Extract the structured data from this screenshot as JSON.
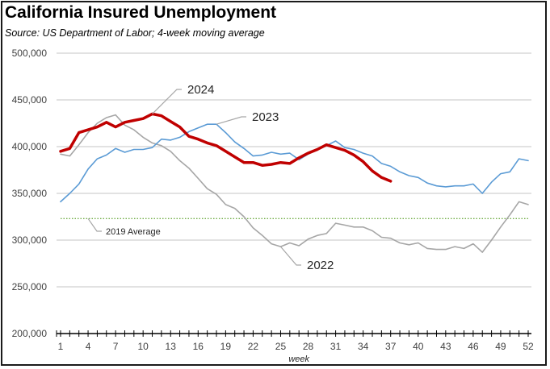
{
  "chart_data": {
    "type": "line",
    "title": "California Insured Unemployment",
    "subtitle": "Source:  US Department of Labor; 4-week moving average",
    "xlabel": "week",
    "ylabel": "",
    "xlim": [
      1,
      52
    ],
    "ylim": [
      200000,
      500000
    ],
    "x_ticks": [
      1,
      4,
      7,
      10,
      13,
      16,
      19,
      22,
      25,
      28,
      31,
      34,
      37,
      40,
      43,
      46,
      49,
      52
    ],
    "y_ticks": [
      200000,
      250000,
      300000,
      350000,
      400000,
      450000,
      500000
    ],
    "y_tick_labels": [
      "200,000",
      "250,000",
      "300,000",
      "350,000",
      "400,000",
      "450,000",
      "500,000"
    ],
    "grid": "horizontal",
    "legend": "inline annotations",
    "series": [
      {
        "name": "2022",
        "color": "#a6a6a6",
        "style": "solid",
        "x_start": 1,
        "values": [
          392000,
          390000,
          402000,
          415000,
          425000,
          431000,
          434000,
          423000,
          418000,
          410000,
          404000,
          401000,
          395000,
          385000,
          377000,
          366000,
          355000,
          349000,
          338000,
          334000,
          325000,
          313000,
          305000,
          296000,
          293000,
          297000,
          294000,
          301000,
          305000,
          307000,
          318000,
          316000,
          314000,
          314000,
          310000,
          303000,
          302000,
          297000,
          295000,
          297000,
          291000,
          290000,
          290000,
          293000,
          291000,
          296000,
          287000,
          300000,
          314000,
          327000,
          341000,
          338000
        ]
      },
      {
        "name": "2023",
        "color": "#5b9bd5",
        "style": "solid",
        "x_start": 1,
        "values": [
          341000,
          350000,
          360000,
          376000,
          387000,
          391000,
          398000,
          394000,
          397000,
          397000,
          399000,
          408000,
          407000,
          410000,
          416000,
          420000,
          424000,
          424000,
          415000,
          405000,
          398000,
          390000,
          391000,
          394000,
          392000,
          393000,
          386000,
          392000,
          397000,
          401000,
          406000,
          399000,
          397000,
          393000,
          390000,
          382000,
          379000,
          373000,
          369000,
          367000,
          361000,
          358000,
          357000,
          358000,
          358000,
          360000,
          350000,
          362000,
          371000,
          373000,
          387000,
          385000
        ]
      },
      {
        "name": "2024",
        "color": "#c00000",
        "style": "thick",
        "x_start": 1,
        "values": [
          395000,
          398000,
          415000,
          418000,
          421000,
          426000,
          421000,
          426000,
          428000,
          430000,
          435000,
          433000,
          427000,
          421000,
          411000,
          408000,
          404000,
          401000,
          395000,
          389000,
          383000,
          383000,
          380000,
          381000,
          383000,
          382000,
          388000,
          393000,
          397000,
          402000,
          399000,
          396000,
          391000,
          384000,
          374000,
          367000,
          363000
        ]
      },
      {
        "name": "2019 Average",
        "color": "#70ad47",
        "style": "dotted",
        "constant": 323000
      }
    ],
    "annotations": [
      {
        "text": "2024",
        "series": "2024",
        "at_week": 11
      },
      {
        "text": "2023",
        "series": "2023",
        "at_week": 18
      },
      {
        "text": "2022",
        "series": "2022",
        "at_week": 25
      },
      {
        "text": "2019 Average",
        "series": "2019 Average",
        "at_week": 4
      }
    ]
  }
}
